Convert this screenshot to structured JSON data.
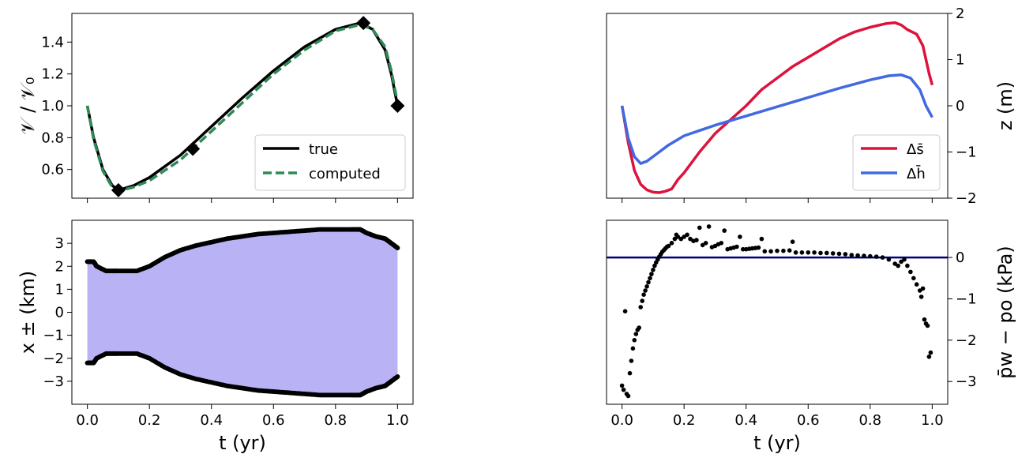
{
  "chart_data": [
    {
      "id": "volume",
      "type": "line",
      "xlim": [
        -0.05,
        1.05
      ],
      "ylim": [
        0.42,
        1.58
      ],
      "yticks": [
        0.6,
        0.8,
        1.0,
        1.2,
        1.4
      ],
      "ytick_labels": [
        "0.6",
        "0.8",
        "1.0",
        "1.2",
        "1.4"
      ],
      "xticks": [
        0.0,
        0.2,
        0.4,
        0.6,
        0.8,
        1.0
      ],
      "ylabel": "𝒱 / 𝒱₀",
      "legend_placement": "lower right",
      "series": [
        {
          "name": "true",
          "color": "#000000",
          "style": "solid",
          "x": [
            0.0,
            0.02,
            0.05,
            0.08,
            0.1,
            0.15,
            0.2,
            0.3,
            0.4,
            0.5,
            0.6,
            0.7,
            0.8,
            0.88,
            0.92,
            0.96,
            0.98,
            1.0
          ],
          "y": [
            1.0,
            0.8,
            0.6,
            0.5,
            0.47,
            0.5,
            0.55,
            0.69,
            0.87,
            1.05,
            1.22,
            1.37,
            1.48,
            1.52,
            1.48,
            1.35,
            1.2,
            1.0
          ]
        },
        {
          "name": "computed",
          "color": "#2e8b57",
          "style": "dashed",
          "x": [
            0.0,
            0.02,
            0.05,
            0.08,
            0.1,
            0.15,
            0.2,
            0.3,
            0.4,
            0.5,
            0.6,
            0.7,
            0.8,
            0.88,
            0.92,
            0.96,
            0.98,
            1.0
          ],
          "y": [
            1.0,
            0.79,
            0.59,
            0.49,
            0.465,
            0.49,
            0.53,
            0.66,
            0.84,
            1.02,
            1.2,
            1.35,
            1.47,
            1.51,
            1.48,
            1.37,
            1.22,
            1.02
          ]
        }
      ],
      "markers": {
        "x": [
          0.1,
          0.34,
          0.89,
          1.0
        ],
        "y": [
          0.47,
          0.73,
          1.52,
          1.0
        ]
      }
    },
    {
      "id": "width",
      "type": "area",
      "xlim": [
        -0.05,
        1.05
      ],
      "ylim": [
        -4.0,
        4.0
      ],
      "yticks": [
        -3,
        -2,
        -1,
        0,
        1,
        2,
        3
      ],
      "ytick_labels": [
        "−3",
        "−2",
        "−1",
        "0",
        "1",
        "2",
        "3"
      ],
      "xticks": [
        0.0,
        0.2,
        0.4,
        0.6,
        0.8,
        1.0
      ],
      "xtick_labels": [
        "0.0",
        "0.2",
        "0.4",
        "0.6",
        "0.8",
        "1.0"
      ],
      "xlabel": "t (yr)",
      "ylabel": "x ± (km)",
      "fill_color": "#b9b3f5",
      "x": [
        0.0,
        0.02,
        0.03,
        0.06,
        0.1,
        0.16,
        0.2,
        0.25,
        0.3,
        0.35,
        0.4,
        0.45,
        0.5,
        0.55,
        0.6,
        0.65,
        0.7,
        0.75,
        0.8,
        0.85,
        0.88,
        0.9,
        0.93,
        0.96,
        0.98,
        1.0
      ],
      "upper": [
        2.2,
        2.2,
        2.0,
        1.8,
        1.8,
        1.8,
        2.0,
        2.4,
        2.7,
        2.9,
        3.05,
        3.2,
        3.3,
        3.4,
        3.45,
        3.5,
        3.55,
        3.6,
        3.6,
        3.6,
        3.6,
        3.45,
        3.3,
        3.2,
        3.0,
        2.8
      ],
      "lower": [
        -2.2,
        -2.2,
        -2.0,
        -1.8,
        -1.8,
        -1.8,
        -2.0,
        -2.4,
        -2.7,
        -2.9,
        -3.05,
        -3.2,
        -3.3,
        -3.4,
        -3.45,
        -3.5,
        -3.55,
        -3.6,
        -3.6,
        -3.6,
        -3.6,
        -3.45,
        -3.3,
        -3.2,
        -3.0,
        -2.8
      ]
    },
    {
      "id": "elevation",
      "type": "line",
      "xlim": [
        -0.05,
        1.05
      ],
      "ylim": [
        -2.0,
        2.0
      ],
      "yticks": [
        -2,
        -1,
        0,
        1,
        2
      ],
      "ytick_labels": [
        "−2",
        "−1",
        "0",
        "1",
        "2"
      ],
      "xticks": [
        0.0,
        0.2,
        0.4,
        0.6,
        0.8,
        1.0
      ],
      "ylabel": "z (m)",
      "legend_placement": "lower right",
      "series": [
        {
          "name": "Δs̄",
          "color": "#dc143c",
          "x": [
            0.0,
            0.02,
            0.04,
            0.06,
            0.08,
            0.1,
            0.12,
            0.14,
            0.16,
            0.18,
            0.2,
            0.25,
            0.3,
            0.35,
            0.4,
            0.45,
            0.5,
            0.55,
            0.6,
            0.65,
            0.7,
            0.75,
            0.8,
            0.85,
            0.88,
            0.9,
            0.92,
            0.95,
            0.97,
            0.99,
            1.0
          ],
          "y": [
            0.0,
            -0.8,
            -1.4,
            -1.7,
            -1.82,
            -1.87,
            -1.88,
            -1.85,
            -1.8,
            -1.6,
            -1.45,
            -1.0,
            -0.6,
            -0.3,
            0.0,
            0.35,
            0.6,
            0.85,
            1.05,
            1.25,
            1.45,
            1.6,
            1.7,
            1.78,
            1.8,
            1.75,
            1.65,
            1.55,
            1.3,
            0.7,
            0.45
          ]
        },
        {
          "name": "Δh̄",
          "color": "#4169e1",
          "x": [
            0.0,
            0.02,
            0.04,
            0.06,
            0.08,
            0.1,
            0.15,
            0.2,
            0.3,
            0.4,
            0.5,
            0.6,
            0.7,
            0.8,
            0.86,
            0.9,
            0.93,
            0.96,
            0.98,
            1.0
          ],
          "y": [
            0.0,
            -0.7,
            -1.1,
            -1.25,
            -1.2,
            -1.1,
            -0.85,
            -0.65,
            -0.42,
            -0.22,
            -0.02,
            0.18,
            0.38,
            0.56,
            0.65,
            0.67,
            0.6,
            0.35,
            0.0,
            -0.25
          ]
        }
      ]
    },
    {
      "id": "pressure",
      "type": "scatter",
      "xlim": [
        -0.05,
        1.05
      ],
      "ylim": [
        -3.55,
        0.9
      ],
      "yticks": [
        -3,
        -2,
        -1,
        0
      ],
      "ytick_labels": [
        "−3",
        "−2",
        "−1",
        "0"
      ],
      "xticks": [
        0.0,
        0.2,
        0.4,
        0.6,
        0.8,
        1.0
      ],
      "xtick_labels": [
        "0.0",
        "0.2",
        "0.4",
        "0.6",
        "0.8",
        "1.0"
      ],
      "xlabel": "t (yr)",
      "ylabel": "p̄w − po (kPa)",
      "hline": {
        "y": 0,
        "color": "#000080"
      },
      "points": [
        [
          0.0,
          -3.1
        ],
        [
          0.005,
          -3.2
        ],
        [
          0.01,
          -1.3
        ],
        [
          0.015,
          -3.3
        ],
        [
          0.02,
          -3.35
        ],
        [
          0.025,
          -2.8
        ],
        [
          0.03,
          -2.5
        ],
        [
          0.035,
          -2.2
        ],
        [
          0.04,
          -2.0
        ],
        [
          0.045,
          -1.85
        ],
        [
          0.05,
          -1.75
        ],
        [
          0.055,
          -1.7
        ],
        [
          0.06,
          -1.2
        ],
        [
          0.065,
          -1.05
        ],
        [
          0.07,
          -0.9
        ],
        [
          0.075,
          -0.8
        ],
        [
          0.08,
          -0.7
        ],
        [
          0.085,
          -0.6
        ],
        [
          0.09,
          -0.5
        ],
        [
          0.095,
          -0.4
        ],
        [
          0.1,
          -0.3
        ],
        [
          0.105,
          -0.2
        ],
        [
          0.11,
          -0.12
        ],
        [
          0.115,
          -0.05
        ],
        [
          0.12,
          0.02
        ],
        [
          0.125,
          0.08
        ],
        [
          0.13,
          0.14
        ],
        [
          0.135,
          0.18
        ],
        [
          0.14,
          0.22
        ],
        [
          0.145,
          0.26
        ],
        [
          0.15,
          0.28
        ],
        [
          0.16,
          0.35
        ],
        [
          0.17,
          0.45
        ],
        [
          0.175,
          0.55
        ],
        [
          0.18,
          0.5
        ],
        [
          0.19,
          0.45
        ],
        [
          0.2,
          0.5
        ],
        [
          0.21,
          0.55
        ],
        [
          0.22,
          0.45
        ],
        [
          0.23,
          0.4
        ],
        [
          0.24,
          0.42
        ],
        [
          0.25,
          0.72
        ],
        [
          0.26,
          0.3
        ],
        [
          0.27,
          0.35
        ],
        [
          0.28,
          0.75
        ],
        [
          0.29,
          0.25
        ],
        [
          0.3,
          0.28
        ],
        [
          0.31,
          0.32
        ],
        [
          0.32,
          0.35
        ],
        [
          0.33,
          0.65
        ],
        [
          0.34,
          0.2
        ],
        [
          0.35,
          0.22
        ],
        [
          0.36,
          0.24
        ],
        [
          0.37,
          0.26
        ],
        [
          0.38,
          0.5
        ],
        [
          0.39,
          0.2
        ],
        [
          0.4,
          0.2
        ],
        [
          0.41,
          0.21
        ],
        [
          0.42,
          0.22
        ],
        [
          0.43,
          0.23
        ],
        [
          0.44,
          0.24
        ],
        [
          0.45,
          0.45
        ],
        [
          0.46,
          0.15
        ],
        [
          0.48,
          0.15
        ],
        [
          0.5,
          0.16
        ],
        [
          0.52,
          0.16
        ],
        [
          0.54,
          0.17
        ],
        [
          0.55,
          0.38
        ],
        [
          0.56,
          0.12
        ],
        [
          0.58,
          0.12
        ],
        [
          0.6,
          0.12
        ],
        [
          0.62,
          0.12
        ],
        [
          0.64,
          0.11
        ],
        [
          0.66,
          0.11
        ],
        [
          0.68,
          0.1
        ],
        [
          0.7,
          0.09
        ],
        [
          0.72,
          0.08
        ],
        [
          0.74,
          0.06
        ],
        [
          0.76,
          0.05
        ],
        [
          0.78,
          0.04
        ],
        [
          0.8,
          0.03
        ],
        [
          0.82,
          0.02
        ],
        [
          0.84,
          0.0
        ],
        [
          0.86,
          -0.05
        ],
        [
          0.88,
          -0.15
        ],
        [
          0.89,
          -0.2
        ],
        [
          0.9,
          -0.1
        ],
        [
          0.91,
          -0.05
        ],
        [
          0.92,
          -0.2
        ],
        [
          0.93,
          -0.35
        ],
        [
          0.94,
          -0.5
        ],
        [
          0.95,
          -0.65
        ],
        [
          0.96,
          -0.8
        ],
        [
          0.965,
          -0.95
        ],
        [
          0.97,
          -0.75
        ],
        [
          0.975,
          -1.5
        ],
        [
          0.98,
          -1.6
        ],
        [
          0.985,
          -1.65
        ],
        [
          0.99,
          -2.4
        ],
        [
          0.995,
          -2.3
        ]
      ]
    }
  ]
}
